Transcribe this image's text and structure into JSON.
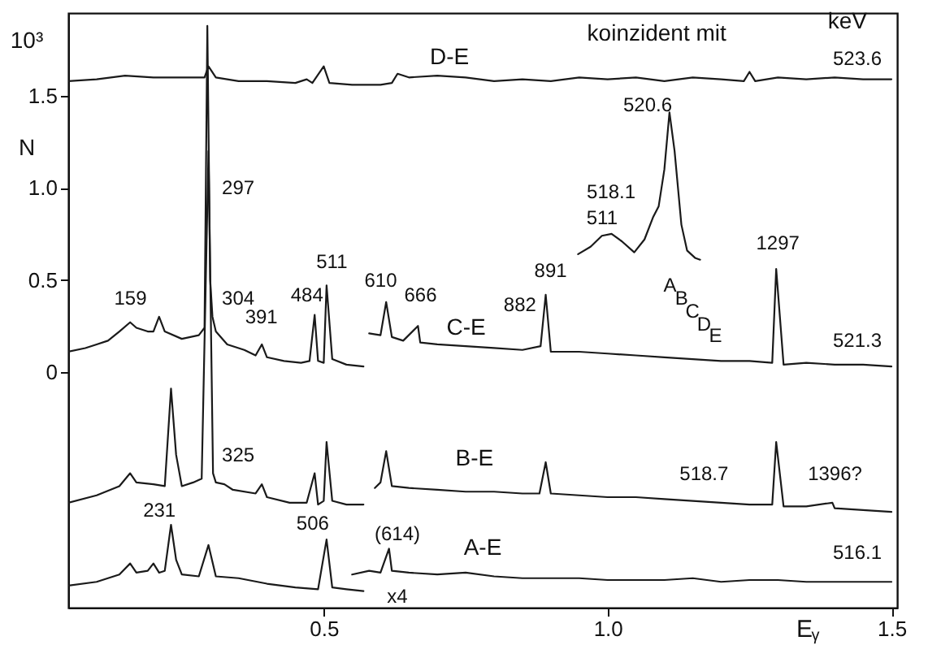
{
  "chart_data": {
    "type": "line",
    "xlabel": "E$_{γ}$",
    "ylabel": "10³ N",
    "xlim": [
      0.05,
      1.51
    ],
    "ylim": [
      -1.28,
      1.95
    ],
    "xticks": [
      0.5,
      {
        "value": 1,
        "label": "1.0"
      },
      1.5
    ],
    "yticks": [
      0,
      0.5,
      {
        "value": 1,
        "label": "1.0"
      },
      1.5
    ],
    "grid": false,
    "marker": "none",
    "line_style": "solid",
    "series": [
      {
        "name": "D-E",
        "color": "#1a1a1a",
        "x": [
          0.05,
          0.1,
          0.15,
          0.2,
          0.25,
          0.29,
          0.297,
          0.31,
          0.35,
          0.4,
          0.45,
          0.47,
          0.48,
          0.5,
          0.51,
          0.55,
          0.6,
          0.62,
          0.63,
          0.65,
          0.7,
          0.75,
          0.8,
          0.85,
          0.9,
          0.95,
          1.0,
          1.05,
          1.1,
          1.15,
          1.2,
          1.24,
          1.25,
          1.26,
          1.3,
          1.35,
          1.4,
          1.45,
          1.5
        ],
        "values": [
          1.58,
          1.59,
          1.61,
          1.6,
          1.6,
          1.6,
          1.66,
          1.6,
          1.58,
          1.58,
          1.57,
          1.59,
          1.57,
          1.66,
          1.57,
          1.56,
          1.56,
          1.57,
          1.62,
          1.6,
          1.61,
          1.6,
          1.58,
          1.59,
          1.58,
          1.6,
          1.59,
          1.6,
          1.58,
          1.6,
          1.59,
          1.58,
          1.63,
          1.58,
          1.6,
          1.59,
          1.6,
          1.59,
          1.59
        ]
      },
      {
        "name": "C-E",
        "color": "#1a1a1a",
        "x": [
          0.05,
          0.08,
          0.1,
          0.12,
          0.14,
          0.159,
          0.17,
          0.19,
          0.2,
          0.21,
          0.22,
          0.25,
          0.28,
          0.29,
          0.295,
          0.3,
          0.304,
          0.31,
          0.33,
          0.36,
          0.38,
          0.391,
          0.4,
          0.43,
          0.46,
          0.475,
          0.484,
          0.49,
          0.5,
          0.505,
          0.515,
          0.54,
          0.57,
          null,
          0.58,
          0.6,
          0.61,
          0.62,
          0.64,
          0.666,
          0.67,
          0.7,
          0.75,
          0.8,
          0.85,
          0.882,
          0.891,
          0.9,
          0.95,
          1.0,
          1.05,
          1.1,
          1.15,
          1.2,
          1.25,
          1.29,
          1.297,
          1.31,
          1.35,
          1.4,
          1.45,
          1.5
        ],
        "values": [
          0.11,
          0.13,
          0.15,
          0.17,
          0.22,
          0.27,
          0.24,
          0.22,
          0.22,
          0.3,
          0.22,
          0.18,
          0.2,
          0.24,
          1.88,
          0.5,
          0.3,
          0.22,
          0.15,
          0.12,
          0.09,
          0.15,
          0.08,
          0.06,
          0.05,
          0.06,
          0.31,
          0.06,
          0.05,
          0.47,
          0.07,
          0.04,
          0.03,
          null,
          0.21,
          0.2,
          0.38,
          0.19,
          0.17,
          0.25,
          0.16,
          0.15,
          0.14,
          0.13,
          0.12,
          0.14,
          0.42,
          0.11,
          0.11,
          0.1,
          0.09,
          0.08,
          0.07,
          0.06,
          0.06,
          0.05,
          0.56,
          0.04,
          0.05,
          0.04,
          0.04,
          0.03
        ]
      },
      {
        "name": "B-E",
        "color": "#1a1a1a",
        "x": [
          0.05,
          0.1,
          0.14,
          0.159,
          0.17,
          0.2,
          0.22,
          0.231,
          0.24,
          0.25,
          0.27,
          0.285,
          0.297,
          0.305,
          0.31,
          0.325,
          0.34,
          0.38,
          0.391,
          0.4,
          0.44,
          0.47,
          0.484,
          0.49,
          0.5,
          0.505,
          0.515,
          0.54,
          0.57,
          null,
          0.59,
          0.6,
          0.61,
          0.62,
          0.65,
          0.7,
          0.75,
          0.8,
          0.85,
          0.88,
          0.891,
          0.9,
          0.95,
          1.0,
          1.05,
          1.1,
          1.15,
          1.2,
          1.25,
          1.29,
          1.297,
          1.31,
          1.35,
          1.396,
          1.4,
          1.45,
          1.5
        ],
        "values": [
          -0.71,
          -0.67,
          -0.62,
          -0.55,
          -0.6,
          -0.61,
          -0.62,
          -0.09,
          -0.45,
          -0.62,
          -0.6,
          -0.58,
          1.2,
          -0.55,
          -0.6,
          -0.61,
          -0.64,
          -0.66,
          -0.61,
          -0.68,
          -0.71,
          -0.71,
          -0.55,
          -0.72,
          -0.7,
          -0.38,
          -0.7,
          -0.72,
          -0.72,
          null,
          -0.63,
          -0.6,
          -0.43,
          -0.62,
          -0.63,
          -0.64,
          -0.65,
          -0.65,
          -0.66,
          -0.66,
          -0.49,
          -0.66,
          -0.67,
          -0.68,
          -0.68,
          -0.69,
          -0.7,
          -0.71,
          -0.72,
          -0.72,
          -0.38,
          -0.73,
          -0.73,
          -0.71,
          -0.74,
          -0.75,
          -0.76
        ]
      },
      {
        "name": "A-E",
        "color": "#1a1a1a",
        "x": [
          0.05,
          0.1,
          0.14,
          0.159,
          0.17,
          0.19,
          0.2,
          0.21,
          0.22,
          0.231,
          0.24,
          0.25,
          0.28,
          0.297,
          0.31,
          0.35,
          0.4,
          0.45,
          0.49,
          0.505,
          0.515,
          0.54,
          0.57,
          null,
          0.55,
          0.58,
          0.6,
          0.615,
          0.62,
          0.65,
          0.7,
          0.75,
          0.8,
          0.85,
          0.9,
          0.95,
          1.0,
          1.05,
          1.1,
          1.15,
          1.2,
          1.25,
          1.3,
          1.35,
          1.4,
          1.45,
          1.5
        ],
        "values": [
          -1.16,
          -1.14,
          -1.1,
          -1.04,
          -1.09,
          -1.08,
          -1.04,
          -1.09,
          -1.08,
          -0.83,
          -1.02,
          -1.1,
          -1.11,
          -0.94,
          -1.11,
          -1.12,
          -1.15,
          -1.17,
          -1.18,
          -0.91,
          -1.17,
          -1.18,
          -1.19,
          null,
          -1.1,
          -1.08,
          -1.09,
          -0.96,
          -1.08,
          -1.09,
          -1.1,
          -1.09,
          -1.11,
          -1.12,
          -1.12,
          -1.12,
          -1.13,
          -1.13,
          -1.13,
          -1.12,
          -1.14,
          -1.13,
          -1.13,
          -1.14,
          -1.14,
          -1.14,
          -1.14
        ]
      },
      {
        "color": "#1a1a1a",
        "x": [
          0.948,
          0.97,
          0.99,
          1.007,
          1.025,
          1.047,
          1.065,
          1.08,
          1.09,
          1.1,
          1.109,
          1.118,
          1.13,
          1.14,
          1.154,
          1.163
        ],
        "values": [
          0.64,
          0.68,
          0.74,
          0.75,
          0.71,
          0.65,
          0.72,
          0.84,
          0.9,
          1.1,
          1.41,
          1.2,
          0.8,
          0.66,
          0.62,
          0.61
        ]
      }
    ],
    "annotations": [
      "koinzident mit",
      "keV",
      "523.6",
      "521.3",
      "518.7",
      "516.1",
      "159",
      "297",
      "304",
      "391",
      "484",
      "511",
      "610",
      "666",
      "882",
      "891",
      "1297",
      "325",
      "1396?",
      "231",
      "506",
      "(614)",
      "x4",
      "511",
      "518.1",
      "520.6",
      "A",
      "B",
      "C",
      "D",
      "E"
    ]
  }
}
